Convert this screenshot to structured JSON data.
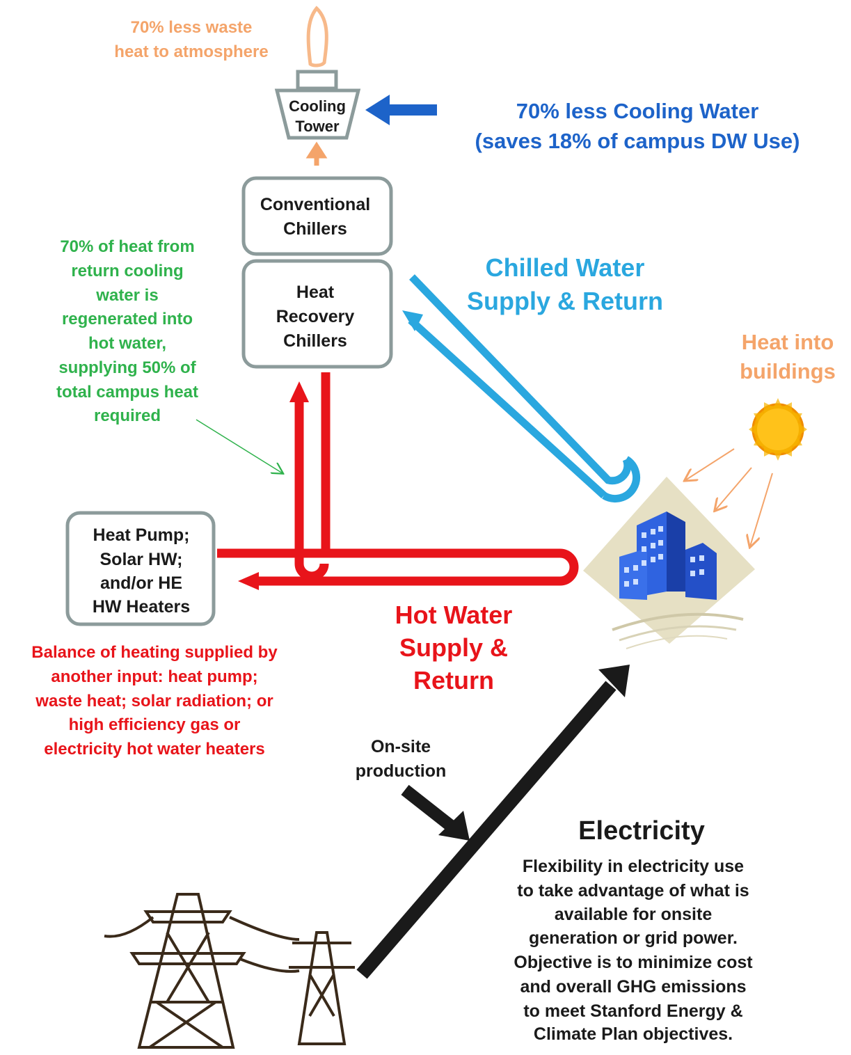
{
  "cooling_tower": {
    "label": [
      "Cooling",
      "Tower"
    ],
    "note": [
      "70% less  waste",
      "heat to atmosphere"
    ]
  },
  "cooling_water": [
    "70% less Cooling Water",
    "(saves 18% of campus DW Use)"
  ],
  "conventional_chillers": [
    "Conventional",
    "Chillers"
  ],
  "heat_recovery_chillers": [
    "Heat",
    "Recovery",
    "Chillers"
  ],
  "heat_regen_note": [
    "70% of heat from",
    "return cooling",
    "water is",
    "regenerated  into",
    "hot water,",
    "supplying 50%  of",
    "total campus  heat",
    "required"
  ],
  "chilled_water": [
    "Chilled Water",
    "Supply & Return"
  ],
  "heat_into_buildings": [
    "Heat into",
    "buildings"
  ],
  "heat_pump": [
    "Heat Pump;",
    "Solar HW;",
    "and/or HE",
    "HW Heaters"
  ],
  "hot_water": [
    "Hot Water",
    "Supply &",
    "Return"
  ],
  "balance_note": [
    "Balance of heating supplied  by",
    "another input: heat pump;",
    "waste heat;  solar radiation;  or",
    "high efficiency  gas or",
    "electricity  hot water heaters"
  ],
  "onsite": [
    "On-site",
    "production"
  ],
  "electricity": {
    "title": "Electricity",
    "body": [
      "Flexibility in electricity  use",
      "to take advantage of what is",
      "available  for onsite",
      "generation or grid power.",
      "Objective is to minimize cost",
      "and overall  GHG emissions",
      "to meet  Stanford Energy &",
      "Climate Plan objectives."
    ]
  }
}
